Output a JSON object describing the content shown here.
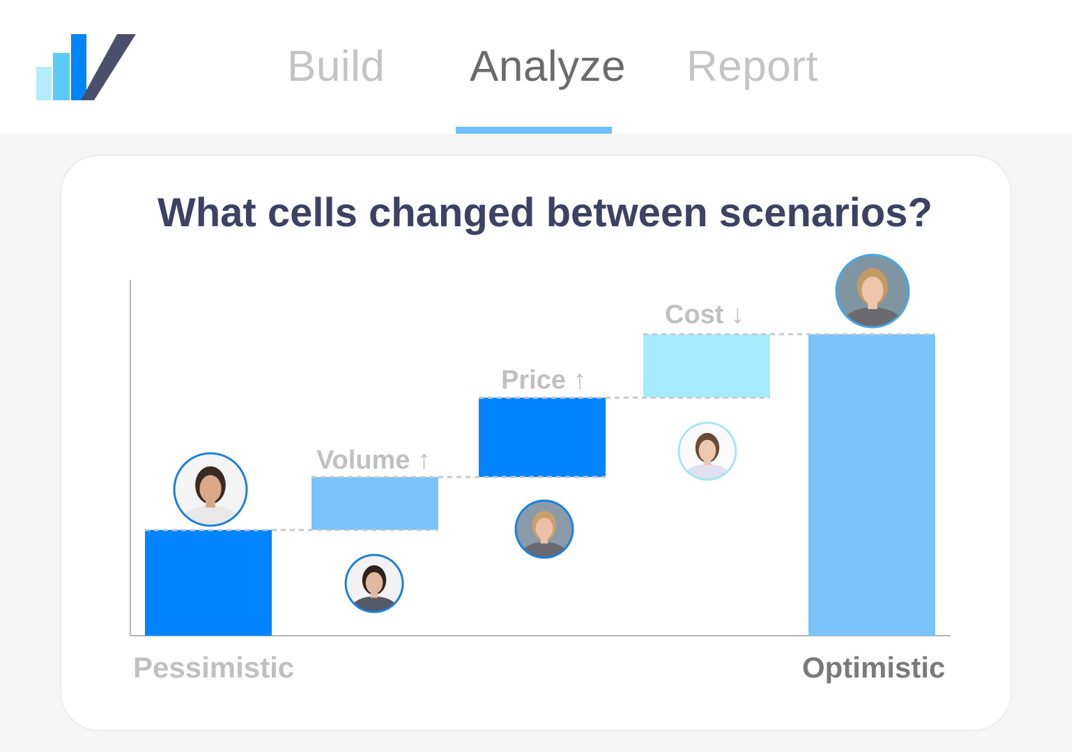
{
  "nav": {
    "tabs": [
      {
        "label": "Build",
        "active": false
      },
      {
        "label": "Analyze",
        "active": true
      },
      {
        "label": "Report",
        "active": false
      }
    ]
  },
  "colors": {
    "dark_blue": "#0185fe",
    "mid_blue": "#78c3fc",
    "light_blue": "#a6ecfd",
    "title": "#3c4263",
    "muted_label": "#c0c0c0",
    "end_label": "#7a7a7a"
  },
  "chart_data": {
    "type": "bar",
    "title": "What cells changed between scenarios?",
    "subtype": "waterfall",
    "categories": [
      "Pessimistic",
      "Volume",
      "Price",
      "Cost",
      "Optimistic"
    ],
    "steps": [
      {
        "label": "Pessimistic",
        "start": 0,
        "end": 2,
        "kind": "total",
        "color": "#0185fe",
        "axis_label": "Pessimistic",
        "avatar": "man-smiling-avatar"
      },
      {
        "label": "Volume",
        "start": 2,
        "end": 3,
        "kind": "increase",
        "color": "#78c3fc",
        "arrow": "↑",
        "avatar": "man-suit-avatar"
      },
      {
        "label": "Price",
        "start": 3,
        "end": 4.5,
        "kind": "increase",
        "color": "#0185fe",
        "arrow": "↑",
        "avatar": "woman-blonde-avatar"
      },
      {
        "label": "Cost",
        "start": 4.5,
        "end": 5.7,
        "kind": "increase",
        "color": "#a6ecfd",
        "arrow": "↓",
        "avatar": "woman-laptop-avatar"
      },
      {
        "label": "Optimistic",
        "start": 0,
        "end": 5.7,
        "kind": "total",
        "color": "#78c3fc",
        "axis_label": "Optimistic",
        "avatar": "woman-blonde-large-avatar"
      }
    ],
    "ylim": [
      0,
      6.6
    ],
    "grid": false,
    "legend": "none",
    "connectors": "dashed"
  }
}
